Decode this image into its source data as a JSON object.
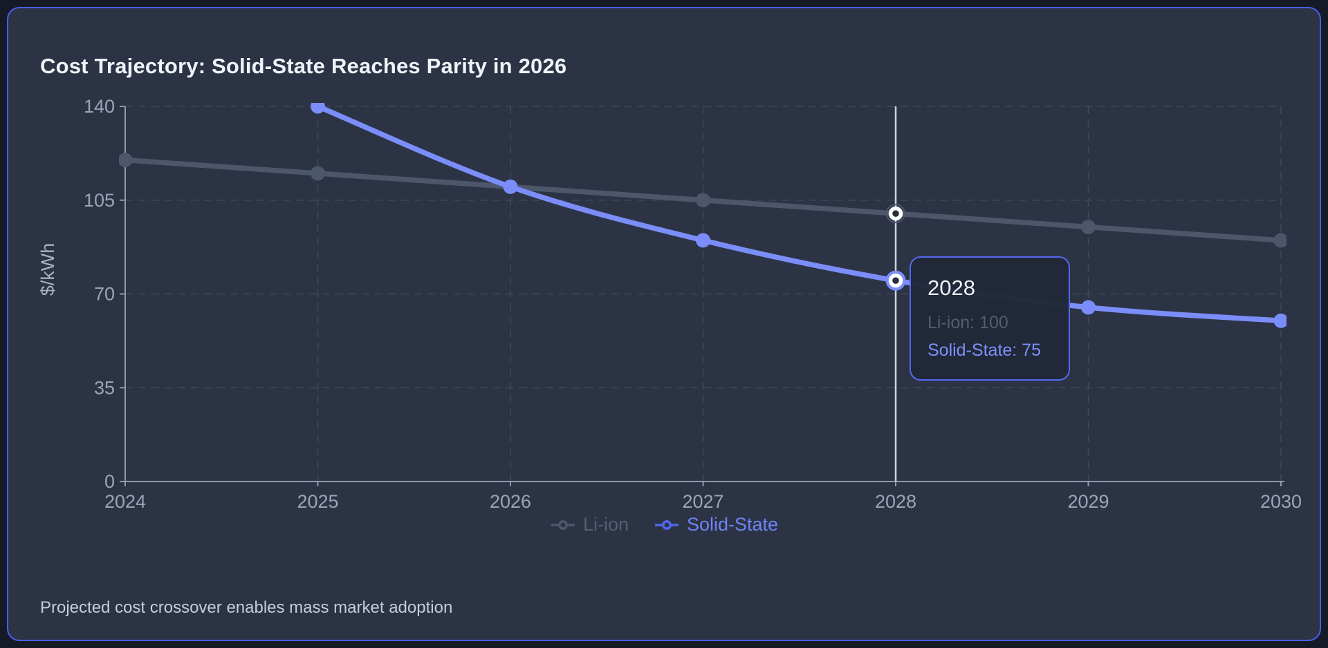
{
  "card": {
    "title": "Cost Trajectory: Solid-State Reaches Parity in 2026",
    "footer": "Projected cost crossover enables mass market adoption"
  },
  "colors": {
    "page_background": "#151a26",
    "card_background": "#2b3344",
    "card_border": "#4a5eef",
    "grid": "#3f485c",
    "axis": "#8e9aad",
    "tick_label": "#9aa5b7",
    "axis_title": "#a7b1c3",
    "hover_line": "#ccd3df",
    "active_ring": "#ffffff"
  },
  "chart_data": {
    "type": "line",
    "title": "Cost Trajectory: Solid-State Reaches Parity in 2026",
    "x_categories": [
      "2024",
      "2025",
      "2026",
      "2027",
      "2028",
      "2029",
      "2030"
    ],
    "series": [
      {
        "name": "Li-ion",
        "color": "#4d576b",
        "values": [
          120,
          115,
          110,
          105,
          100,
          95,
          90
        ]
      },
      {
        "name": "Solid-State",
        "color": "#7b8df8",
        "values": [
          null,
          140,
          110,
          90,
          75,
          65,
          60
        ]
      }
    ],
    "xlabel": "",
    "ylabel": "$/kWh",
    "yticks": [
      0,
      35,
      70,
      105,
      140
    ],
    "ylim": [
      0,
      140
    ],
    "grid": true,
    "legend_position": "bottom",
    "hover_line": true,
    "active_category": "2028",
    "active_index": 4
  },
  "legend": {
    "items": [
      {
        "label": "Li-ion",
        "marker_color": "#4d576b",
        "text_color": "#555f73"
      },
      {
        "label": "Solid-State",
        "marker_color": "#5266ee",
        "text_color": "#6f83f4"
      }
    ]
  },
  "tooltip": {
    "title": "2028",
    "rows": [
      {
        "text": "Li-ion: 100",
        "color": "#535e73"
      },
      {
        "text": "Solid-State: 75",
        "color": "#7d90fa"
      }
    ]
  }
}
